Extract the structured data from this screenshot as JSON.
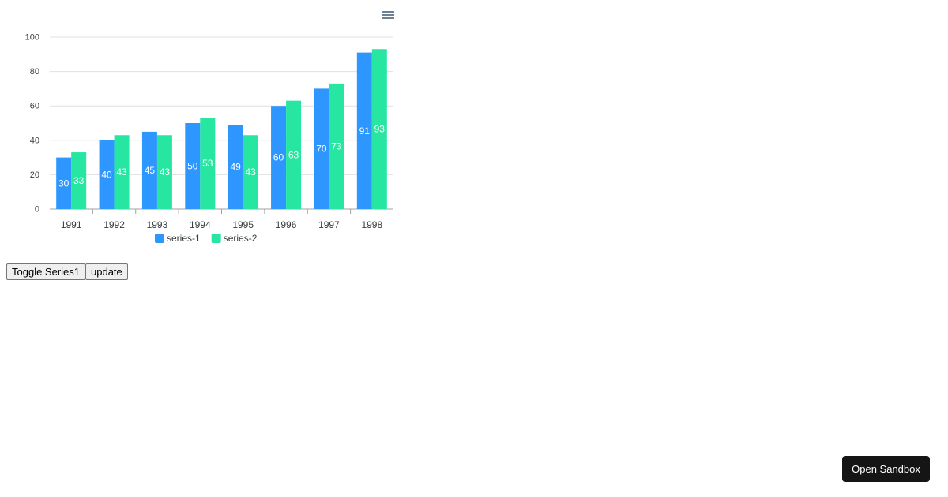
{
  "chart_data": {
    "type": "bar",
    "categories": [
      "1991",
      "1992",
      "1993",
      "1994",
      "1995",
      "1996",
      "1997",
      "1998"
    ],
    "series": [
      {
        "name": "series-1",
        "color": "#2d96ff",
        "values": [
          30,
          40,
          45,
          50,
          49,
          60,
          70,
          91
        ]
      },
      {
        "name": "series-2",
        "color": "#27e6a2",
        "values": [
          33,
          43,
          43,
          53,
          43,
          63,
          73,
          93
        ]
      }
    ],
    "ylim": [
      0,
      100
    ],
    "yticks": [
      0,
      20,
      40,
      60,
      80,
      100
    ],
    "grid": true,
    "data_labels": true,
    "legend": "bottom-center"
  },
  "toolbar": {
    "menu_icon": "hamburger-menu-icon"
  },
  "controls": {
    "toggle_label": "Toggle Series1",
    "update_label": "update"
  },
  "sandbox": {
    "label": "Open Sandbox"
  }
}
